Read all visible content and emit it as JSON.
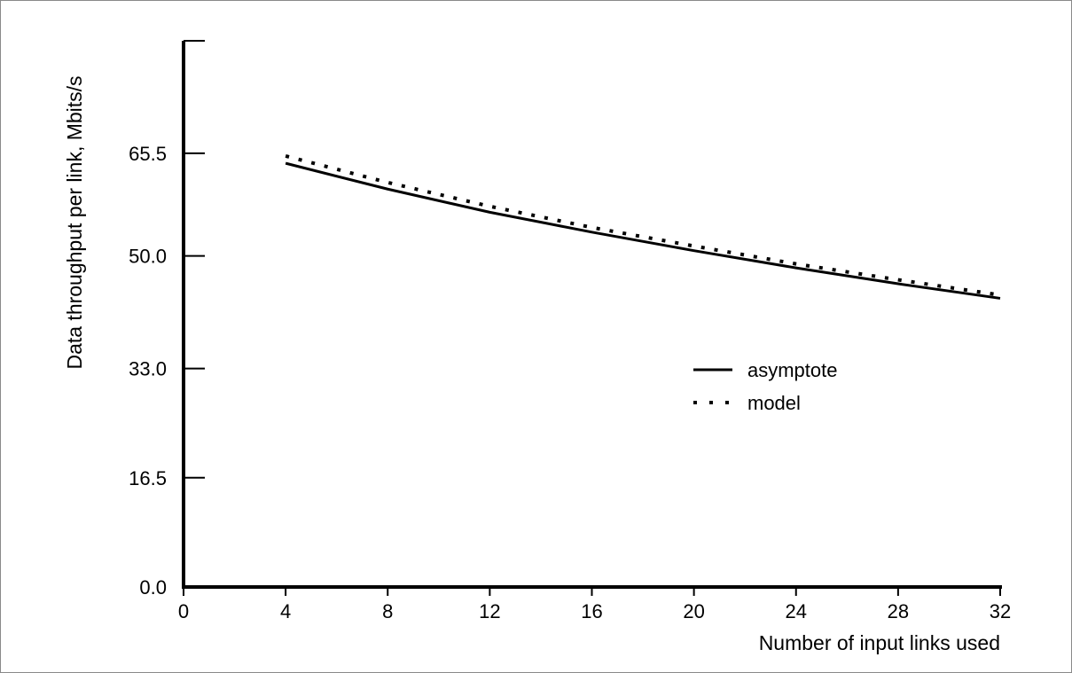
{
  "chart_data": {
    "type": "line",
    "title": "",
    "xlabel": "Number of input links used",
    "ylabel": "Data throughput per link, Mbits/s",
    "xlim": [
      0,
      32
    ],
    "ylim": [
      0,
      82.5
    ],
    "x_ticks": [
      "0",
      "4",
      "8",
      "12",
      "16",
      "20",
      "24",
      "28",
      "32"
    ],
    "y_ticks": [
      "0.0",
      "16.5",
      "33.0",
      "50.0",
      "65.5"
    ],
    "y_tick_values": [
      0,
      16.5,
      33.0,
      50.0,
      65.5
    ],
    "grid": false,
    "legend_position": "center-right",
    "series": [
      {
        "name": "asymptote",
        "style": "solid",
        "color": "#000000",
        "x": [
          4,
          8,
          12,
          16,
          20,
          24,
          28,
          32
        ],
        "y": [
          64.0,
          60.1,
          56.6,
          53.6,
          50.8,
          48.2,
          45.8,
          43.6
        ]
      },
      {
        "name": "model",
        "style": "dotted",
        "color": "#000000",
        "x": [
          4,
          8,
          12,
          16,
          20,
          24,
          28,
          32
        ],
        "y": [
          65.1,
          61.1,
          57.5,
          54.3,
          51.5,
          48.8,
          46.4,
          44.1
        ]
      }
    ]
  }
}
